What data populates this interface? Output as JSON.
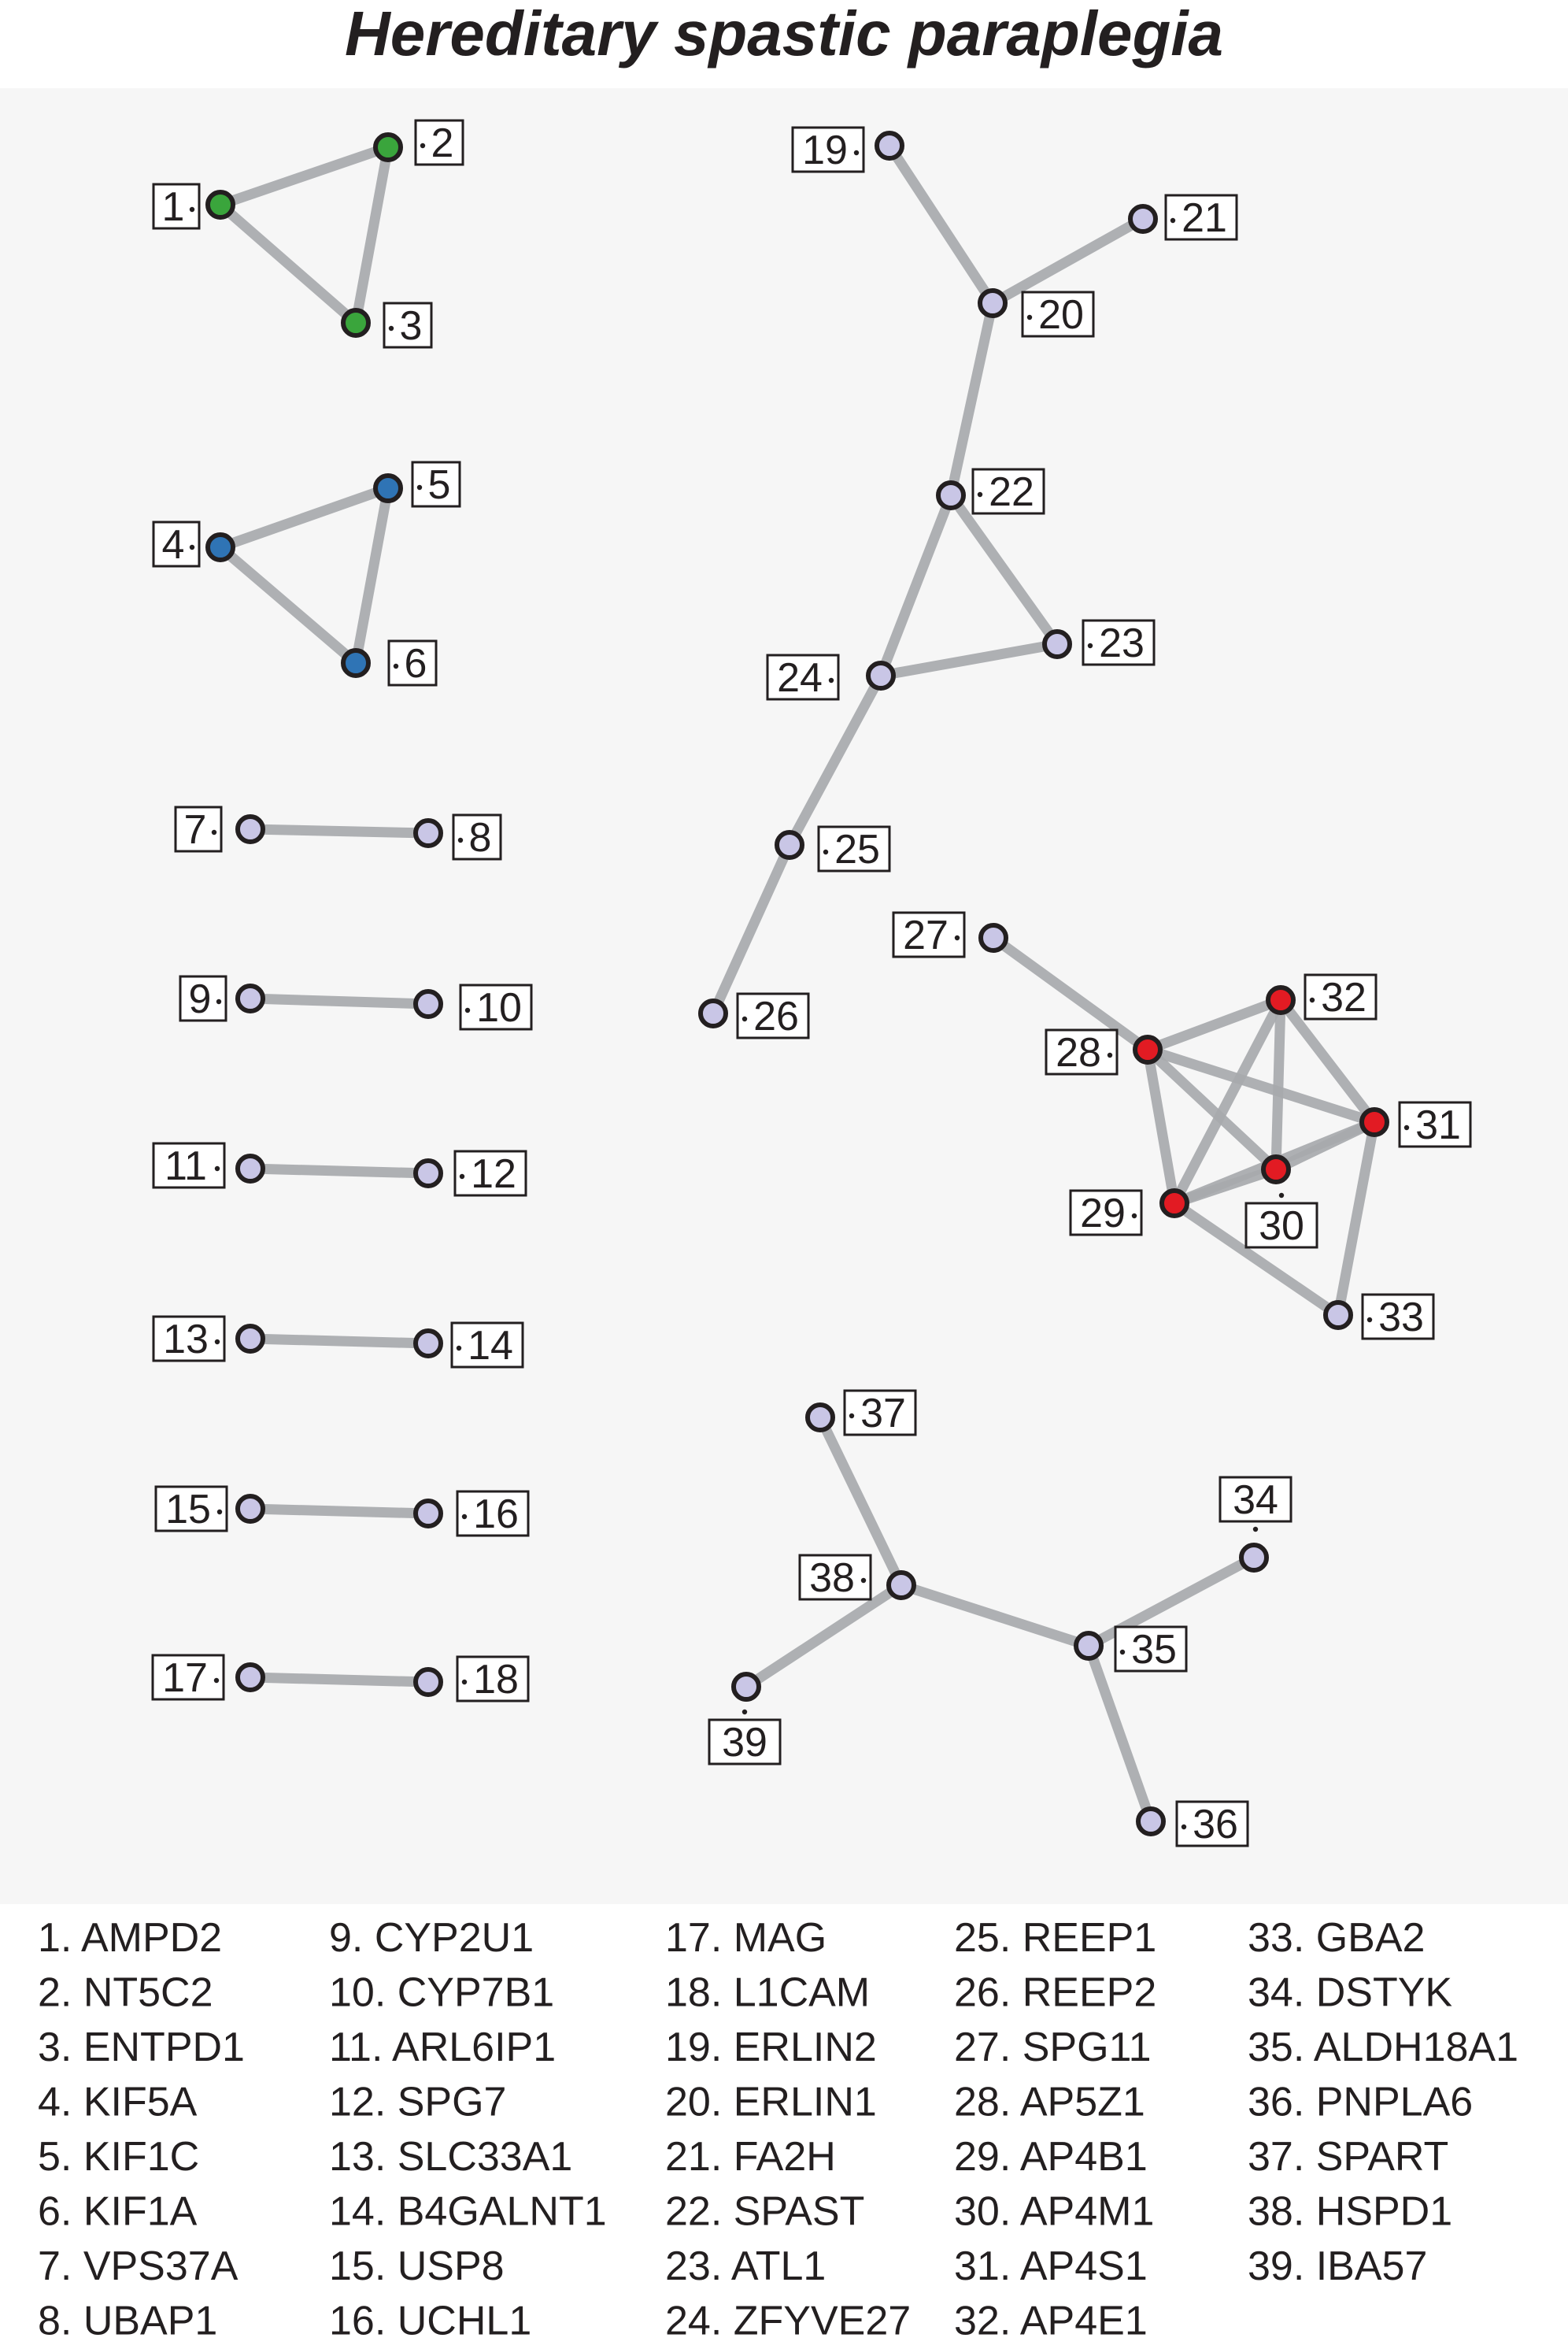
{
  "title": "Hereditary spastic paraplegia",
  "colors": {
    "background": "#f6f6f6",
    "edge": "#a7a9ac",
    "node_stroke": "#231f20",
    "label_border": "#231f20",
    "text": "#231f20",
    "default_node": "#c9c6e6",
    "group_green": "#3aa53c",
    "group_blue": "#2f74b5",
    "group_red": "#e21b23"
  },
  "nodes": [
    {
      "id": "1",
      "color": "green"
    },
    {
      "id": "2",
      "color": "green"
    },
    {
      "id": "3",
      "color": "green"
    },
    {
      "id": "4",
      "color": "blue"
    },
    {
      "id": "5",
      "color": "blue"
    },
    {
      "id": "6",
      "color": "blue"
    },
    {
      "id": "7",
      "color": "default"
    },
    {
      "id": "8",
      "color": "default"
    },
    {
      "id": "9",
      "color": "default"
    },
    {
      "id": "10",
      "color": "default"
    },
    {
      "id": "11",
      "color": "default"
    },
    {
      "id": "12",
      "color": "default"
    },
    {
      "id": "13",
      "color": "default"
    },
    {
      "id": "14",
      "color": "default"
    },
    {
      "id": "15",
      "color": "default"
    },
    {
      "id": "16",
      "color": "default"
    },
    {
      "id": "17",
      "color": "default"
    },
    {
      "id": "18",
      "color": "default"
    },
    {
      "id": "19",
      "color": "default"
    },
    {
      "id": "20",
      "color": "default"
    },
    {
      "id": "21",
      "color": "default"
    },
    {
      "id": "22",
      "color": "default"
    },
    {
      "id": "23",
      "color": "default"
    },
    {
      "id": "24",
      "color": "default"
    },
    {
      "id": "25",
      "color": "default"
    },
    {
      "id": "26",
      "color": "default"
    },
    {
      "id": "27",
      "color": "default"
    },
    {
      "id": "28",
      "color": "red"
    },
    {
      "id": "29",
      "color": "red"
    },
    {
      "id": "30",
      "color": "red"
    },
    {
      "id": "31",
      "color": "red"
    },
    {
      "id": "32",
      "color": "red"
    },
    {
      "id": "33",
      "color": "default"
    },
    {
      "id": "34",
      "color": "default"
    },
    {
      "id": "35",
      "color": "default"
    },
    {
      "id": "36",
      "color": "default"
    },
    {
      "id": "37",
      "color": "default"
    },
    {
      "id": "38",
      "color": "default"
    },
    {
      "id": "39",
      "color": "default"
    }
  ],
  "edges": [
    [
      "1",
      "2"
    ],
    [
      "1",
      "3"
    ],
    [
      "2",
      "3"
    ],
    [
      "4",
      "5"
    ],
    [
      "4",
      "6"
    ],
    [
      "5",
      "6"
    ],
    [
      "7",
      "8"
    ],
    [
      "9",
      "10"
    ],
    [
      "11",
      "12"
    ],
    [
      "13",
      "14"
    ],
    [
      "15",
      "16"
    ],
    [
      "17",
      "18"
    ],
    [
      "19",
      "20"
    ],
    [
      "20",
      "21"
    ],
    [
      "20",
      "22"
    ],
    [
      "22",
      "23"
    ],
    [
      "22",
      "24"
    ],
    [
      "23",
      "24"
    ],
    [
      "24",
      "25"
    ],
    [
      "25",
      "26"
    ],
    [
      "27",
      "28"
    ],
    [
      "28",
      "32"
    ],
    [
      "28",
      "31"
    ],
    [
      "28",
      "30"
    ],
    [
      "28",
      "29"
    ],
    [
      "29",
      "32"
    ],
    [
      "29",
      "31"
    ],
    [
      "29",
      "30"
    ],
    [
      "29",
      "33"
    ],
    [
      "30",
      "32"
    ],
    [
      "30",
      "31"
    ],
    [
      "31",
      "32"
    ],
    [
      "31",
      "33"
    ],
    [
      "37",
      "38"
    ],
    [
      "38",
      "39"
    ],
    [
      "38",
      "35"
    ],
    [
      "35",
      "34"
    ],
    [
      "35",
      "36"
    ]
  ],
  "legend": [
    [
      "1. AMPD2",
      "2. NT5C2",
      "3. ENTPD1",
      "4. KIF5A",
      "5. KIF1C",
      "6. KIF1A",
      "7. VPS37A",
      "8. UBAP1"
    ],
    [
      "9. CYP2U1",
      "10. CYP7B1",
      "11. ARL6IP1",
      "12. SPG7",
      "13. SLC33A1",
      "14. B4GALNT1",
      "15. USP8",
      "16. UCHL1"
    ],
    [
      "17. MAG",
      "18. L1CAM",
      "19. ERLIN2",
      "20. ERLIN1",
      "21. FA2H",
      "22. SPAST",
      "23. ATL1",
      "24. ZFYVE27"
    ],
    [
      "25. REEP1",
      "26. REEP2",
      "27. SPG11",
      "28. AP5Z1",
      "29. AP4B1",
      "30. AP4M1",
      "31. AP4S1",
      "32. AP4E1"
    ],
    [
      "33. GBA2",
      "34. DSTYK",
      "35. ALDH18A1",
      "36. PNPLA6",
      "37. SPART",
      "38. HSPD1",
      "39. IBA57"
    ]
  ]
}
